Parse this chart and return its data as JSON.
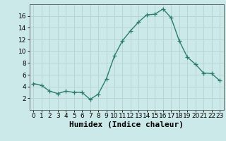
{
  "x": [
    0,
    1,
    2,
    3,
    4,
    5,
    6,
    7,
    8,
    9,
    10,
    11,
    12,
    13,
    14,
    15,
    16,
    17,
    18,
    19,
    20,
    21,
    22,
    23
  ],
  "y": [
    4.5,
    4.2,
    3.2,
    2.8,
    3.2,
    3.0,
    3.0,
    1.8,
    2.7,
    5.3,
    9.2,
    11.8,
    13.5,
    15.0,
    16.2,
    16.3,
    17.2,
    15.7,
    11.8,
    9.0,
    7.8,
    6.3,
    6.2,
    5.0
  ],
  "line_color": "#2d7d6e",
  "marker": "+",
  "marker_size": 4,
  "bg_color": "#cce9e9",
  "grid_color": "#b8d4d4",
  "xlabel": "Humidex (Indice chaleur)",
  "xlim": [
    -0.5,
    23.5
  ],
  "ylim": [
    0,
    18
  ],
  "yticks": [
    2,
    4,
    6,
    8,
    10,
    12,
    14,
    16
  ],
  "xticks": [
    0,
    1,
    2,
    3,
    4,
    5,
    6,
    7,
    8,
    9,
    10,
    11,
    12,
    13,
    14,
    15,
    16,
    17,
    18,
    19,
    20,
    21,
    22,
    23
  ],
  "tick_fontsize": 6.5,
  "xlabel_fontsize": 8
}
